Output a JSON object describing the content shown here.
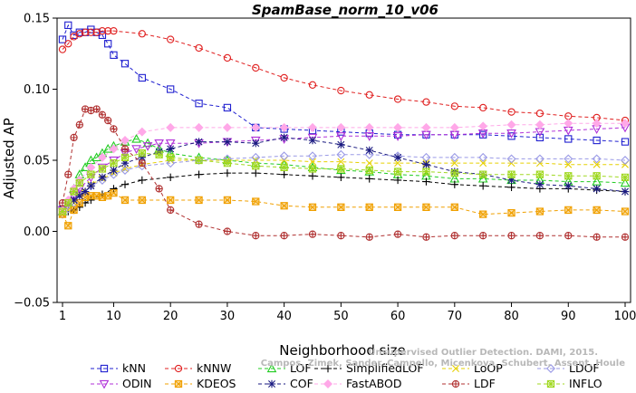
{
  "chart_data": {
    "type": "line",
    "title": "SpamBase_norm_10_v06",
    "xlabel": "Neighborhood size",
    "ylabel": "Adjusted AP",
    "xlim": [
      1,
      100
    ],
    "ylim": [
      -0.05,
      0.15
    ],
    "xticks": [
      1,
      10,
      20,
      30,
      40,
      50,
      60,
      70,
      80,
      90,
      100
    ],
    "yticks": [
      -0.05,
      0.0,
      0.05,
      0.1,
      0.15
    ],
    "ytick_labels": [
      "−0.05",
      "0.00",
      "0.05",
      "0.10",
      "0.15"
    ],
    "grid": false,
    "legend_position": "bottom",
    "watermark": [
      "Unsupervised Outlier Detection. DAMI, 2015.",
      "Campos, Zimek, Sander, Campello, Micenkova, Schubert, Assent, Houle"
    ],
    "series": [
      {
        "name": "kNN",
        "color": "#2020d0",
        "marker": "square",
        "x": [
          1,
          2,
          3,
          4,
          5,
          6,
          7,
          8,
          9,
          10,
          12,
          15,
          20,
          25,
          30,
          35,
          40,
          45,
          50,
          55,
          60,
          65,
          70,
          75,
          80,
          85,
          90,
          95,
          100
        ],
        "y": [
          0.135,
          0.145,
          0.138,
          0.14,
          0.14,
          0.142,
          0.14,
          0.138,
          0.132,
          0.124,
          0.118,
          0.108,
          0.1,
          0.09,
          0.087,
          0.073,
          0.072,
          0.071,
          0.07,
          0.069,
          0.068,
          0.068,
          0.068,
          0.068,
          0.067,
          0.066,
          0.065,
          0.064,
          0.063
        ]
      },
      {
        "name": "kNNW",
        "color": "#e02020",
        "marker": "circle",
        "x": [
          1,
          2,
          3,
          4,
          5,
          6,
          7,
          8,
          9,
          10,
          15,
          20,
          25,
          30,
          35,
          40,
          45,
          50,
          55,
          60,
          65,
          70,
          75,
          80,
          85,
          90,
          95,
          100
        ],
        "y": [
          0.128,
          0.132,
          0.137,
          0.139,
          0.14,
          0.14,
          0.14,
          0.141,
          0.141,
          0.141,
          0.139,
          0.135,
          0.129,
          0.122,
          0.115,
          0.108,
          0.103,
          0.099,
          0.096,
          0.093,
          0.091,
          0.088,
          0.087,
          0.084,
          0.083,
          0.081,
          0.08,
          0.078
        ]
      },
      {
        "name": "LOF",
        "color": "#22cc22",
        "marker": "triangle",
        "x": [
          1,
          2,
          3,
          4,
          5,
          6,
          7,
          8,
          9,
          10,
          12,
          14,
          16,
          18,
          20,
          25,
          30,
          35,
          40,
          45,
          50,
          55,
          60,
          65,
          70,
          75,
          80,
          85,
          90,
          95,
          100
        ],
        "y": [
          0.014,
          0.02,
          0.03,
          0.04,
          0.045,
          0.05,
          0.052,
          0.055,
          0.058,
          0.06,
          0.063,
          0.065,
          0.062,
          0.058,
          0.055,
          0.052,
          0.05,
          0.048,
          0.047,
          0.045,
          0.043,
          0.042,
          0.04,
          0.039,
          0.037,
          0.037,
          0.036,
          0.036,
          0.035,
          0.035,
          0.034
        ]
      },
      {
        "name": "SimplifiedLOF",
        "color": "#000000",
        "marker": "plus",
        "x": [
          1,
          2,
          3,
          4,
          5,
          6,
          8,
          10,
          12,
          15,
          20,
          25,
          30,
          35,
          40,
          45,
          50,
          55,
          60,
          65,
          70,
          75,
          80,
          85,
          90,
          95,
          100
        ],
        "y": [
          0.016,
          0.014,
          0.015,
          0.017,
          0.02,
          0.022,
          0.026,
          0.03,
          0.033,
          0.036,
          0.038,
          0.04,
          0.041,
          0.041,
          0.04,
          0.039,
          0.038,
          0.037,
          0.036,
          0.035,
          0.033,
          0.032,
          0.031,
          0.03,
          0.03,
          0.029,
          0.028
        ]
      },
      {
        "name": "LoOP",
        "color": "#e6d000",
        "marker": "cross",
        "x": [
          1,
          2,
          3,
          4,
          6,
          8,
          10,
          12,
          15,
          20,
          25,
          30,
          35,
          40,
          45,
          50,
          55,
          60,
          65,
          70,
          75,
          80,
          85,
          90,
          95,
          100
        ],
        "y": [
          0.012,
          0.015,
          0.02,
          0.027,
          0.033,
          0.037,
          0.041,
          0.044,
          0.047,
          0.05,
          0.05,
          0.05,
          0.05,
          0.05,
          0.049,
          0.049,
          0.048,
          0.048,
          0.048,
          0.048,
          0.048,
          0.048,
          0.048,
          0.047,
          0.047,
          0.047
        ]
      },
      {
        "name": "LDOF",
        "color": "#9a9ae6",
        "marker": "diamond",
        "x": [
          1,
          2,
          3,
          4,
          6,
          8,
          10,
          12,
          15,
          20,
          25,
          30,
          35,
          40,
          45,
          50,
          55,
          60,
          65,
          70,
          75,
          80,
          85,
          90,
          95,
          100
        ],
        "y": [
          0.012,
          0.016,
          0.02,
          0.026,
          0.032,
          0.036,
          0.04,
          0.043,
          0.046,
          0.048,
          0.05,
          0.051,
          0.052,
          0.053,
          0.053,
          0.054,
          0.054,
          0.053,
          0.052,
          0.052,
          0.052,
          0.051,
          0.051,
          0.051,
          0.051,
          0.05
        ]
      },
      {
        "name": "ODIN",
        "color": "#b030d8",
        "marker": "triangle-down",
        "x": [
          1,
          2,
          3,
          4,
          6,
          8,
          10,
          12,
          14,
          16,
          18,
          20,
          25,
          30,
          35,
          40,
          45,
          50,
          55,
          60,
          65,
          70,
          75,
          80,
          85,
          90,
          95,
          100
        ],
        "y": [
          0.015,
          0.02,
          0.025,
          0.03,
          0.038,
          0.045,
          0.05,
          0.055,
          0.058,
          0.06,
          0.062,
          0.062,
          0.062,
          0.063,
          0.064,
          0.065,
          0.066,
          0.067,
          0.067,
          0.067,
          0.068,
          0.068,
          0.069,
          0.069,
          0.07,
          0.071,
          0.072,
          0.073
        ]
      },
      {
        "name": "KDEOS",
        "color": "#f0a000",
        "marker": "square-x",
        "x": [
          1,
          2,
          3,
          4,
          5,
          6,
          7,
          8,
          9,
          10,
          12,
          15,
          20,
          25,
          30,
          35,
          40,
          45,
          50,
          55,
          60,
          65,
          70,
          75,
          80,
          85,
          90,
          95,
          100
        ],
        "y": [
          0.012,
          0.004,
          0.015,
          0.02,
          0.024,
          0.025,
          0.025,
          0.024,
          0.025,
          0.027,
          0.022,
          0.022,
          0.022,
          0.022,
          0.022,
          0.021,
          0.018,
          0.017,
          0.017,
          0.017,
          0.017,
          0.017,
          0.017,
          0.012,
          0.013,
          0.014,
          0.015,
          0.015,
          0.014
        ]
      },
      {
        "name": "COF",
        "color": "#1a1a80",
        "marker": "asterisk",
        "x": [
          1,
          2,
          3,
          4,
          5,
          6,
          8,
          10,
          12,
          15,
          18,
          20,
          25,
          30,
          35,
          40,
          45,
          50,
          55,
          60,
          65,
          70,
          75,
          80,
          85,
          90,
          95,
          100
        ],
        "y": [
          0.016,
          0.02,
          0.022,
          0.025,
          0.028,
          0.032,
          0.038,
          0.043,
          0.048,
          0.052,
          0.056,
          0.058,
          0.063,
          0.063,
          0.062,
          0.066,
          0.064,
          0.061,
          0.057,
          0.052,
          0.047,
          0.042,
          0.04,
          0.036,
          0.033,
          0.032,
          0.03,
          0.028
        ]
      },
      {
        "name": "FastABOD",
        "color": "#ffa8e8",
        "marker": "diamond-filled",
        "x": [
          1,
          2,
          3,
          4,
          6,
          8,
          10,
          12,
          15,
          20,
          25,
          30,
          35,
          40,
          45,
          50,
          55,
          60,
          65,
          70,
          75,
          80,
          85,
          90,
          95,
          100
        ],
        "y": [
          0.015,
          0.022,
          0.03,
          0.036,
          0.045,
          0.052,
          0.058,
          0.064,
          0.07,
          0.073,
          0.073,
          0.073,
          0.073,
          0.073,
          0.073,
          0.073,
          0.073,
          0.073,
          0.073,
          0.073,
          0.074,
          0.075,
          0.075,
          0.076,
          0.076,
          0.076
        ]
      },
      {
        "name": "LDF",
        "color": "#b03030",
        "marker": "circle-plus",
        "x": [
          1,
          2,
          3,
          4,
          5,
          6,
          7,
          8,
          9,
          10,
          12,
          15,
          18,
          20,
          25,
          30,
          35,
          40,
          45,
          50,
          55,
          60,
          65,
          70,
          75,
          80,
          85,
          90,
          95,
          100
        ],
        "y": [
          0.02,
          0.04,
          0.066,
          0.075,
          0.086,
          0.085,
          0.086,
          0.082,
          0.078,
          0.072,
          0.058,
          0.048,
          0.03,
          0.015,
          0.005,
          0.0,
          -0.003,
          -0.003,
          -0.002,
          -0.003,
          -0.004,
          -0.002,
          -0.004,
          -0.003,
          -0.003,
          -0.003,
          -0.003,
          -0.003,
          -0.004,
          -0.004
        ]
      },
      {
        "name": "INFLO",
        "color": "#a0d820",
        "marker": "star-square",
        "x": [
          1,
          2,
          3,
          4,
          6,
          8,
          10,
          12,
          15,
          18,
          20,
          25,
          30,
          35,
          40,
          45,
          50,
          55,
          60,
          65,
          70,
          75,
          80,
          85,
          90,
          95,
          100
        ],
        "y": [
          0.014,
          0.02,
          0.028,
          0.034,
          0.04,
          0.044,
          0.048,
          0.052,
          0.055,
          0.054,
          0.052,
          0.05,
          0.048,
          0.046,
          0.045,
          0.044,
          0.044,
          0.043,
          0.042,
          0.042,
          0.041,
          0.04,
          0.04,
          0.04,
          0.039,
          0.039,
          0.038
        ]
      }
    ],
    "legend_order": [
      [
        "kNN",
        "kNNW",
        "LOF",
        "SimplifiedLOF",
        "LoOP",
        "LDOF"
      ],
      [
        "ODIN",
        "KDEOS",
        "COF",
        "FastABOD",
        "LDF",
        "INFLO"
      ]
    ]
  }
}
